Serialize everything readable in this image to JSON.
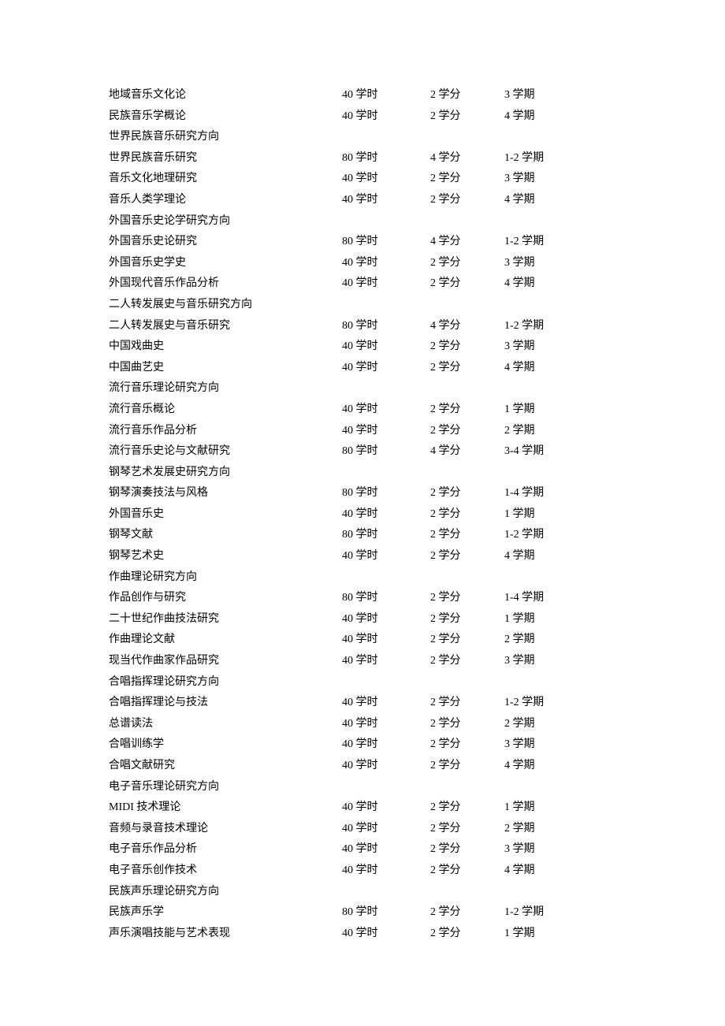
{
  "label_hours_suffix": "学时",
  "label_credit_suffix": "学分",
  "label_term_suffix": "学期",
  "groups": [
    {
      "header": null,
      "rows": [
        {
          "name": "地域音乐文化论",
          "hours": "40",
          "credit": "2",
          "term": "3"
        },
        {
          "name": "民族音乐学概论",
          "hours": "40",
          "credit": "2",
          "term": "4"
        }
      ]
    },
    {
      "header": "世界民族音乐研究方向",
      "rows": [
        {
          "name": "世界民族音乐研究",
          "hours": "80",
          "credit": "4",
          "term": "1-2"
        },
        {
          "name": "音乐文化地理研究",
          "hours": "40",
          "credit": "2",
          "term": "3"
        },
        {
          "name": "音乐人类学理论",
          "hours": "40",
          "credit": "2",
          "term": "4"
        }
      ]
    },
    {
      "header": "外国音乐史论学研究方向",
      "rows": [
        {
          "name": "外国音乐史论研究",
          "hours": "80",
          "credit": "4",
          "term": "1-2"
        },
        {
          "name": "外国音乐史学史",
          "hours": "40",
          "credit": "2",
          "term": "3"
        },
        {
          "name": "外国现代音乐作品分析",
          "hours": "40",
          "credit": "2",
          "term": "4"
        }
      ]
    },
    {
      "header": "二人转发展史与音乐研究方向",
      "rows": [
        {
          "name": "二人转发展史与音乐研究",
          "hours": "80",
          "credit": "4",
          "term": "1-2"
        },
        {
          "name": "中国戏曲史",
          "hours": "40",
          "credit": "2",
          "term": "3"
        },
        {
          "name": "中国曲艺史",
          "hours": "40",
          "credit": "2",
          "term": "4"
        }
      ]
    },
    {
      "header": "流行音乐理论研究方向",
      "rows": [
        {
          "name": "流行音乐概论",
          "hours": "40",
          "credit": "2",
          "term": "1"
        },
        {
          "name": "流行音乐作品分析",
          "hours": "40",
          "credit": "2",
          "term": "2"
        },
        {
          "name": "流行音乐史论与文献研究",
          "hours": "80",
          "credit": "4",
          "term": "3-4"
        }
      ]
    },
    {
      "header": "钢琴艺术发展史研究方向",
      "rows": [
        {
          "name": "钢琴演奏技法与风格",
          "hours": "80",
          "credit": "2",
          "term": "1-4"
        },
        {
          "name": "外国音乐史",
          "hours": "40",
          "credit": "2",
          "term": "1"
        },
        {
          "name": "钢琴文献",
          "hours": "80",
          "credit": "2",
          "term": "1-2"
        },
        {
          "name": "钢琴艺术史",
          "hours": "40",
          "credit": "2",
          "term": "4"
        }
      ]
    },
    {
      "header": "作曲理论研究方向",
      "rows": [
        {
          "name": "作品创作与研究",
          "hours": "80",
          "credit": "2",
          "term": "1-4"
        },
        {
          "name": "二十世纪作曲技法研究",
          "hours": "40",
          "credit": "2",
          "term": "1"
        },
        {
          "name": "作曲理论文献",
          "hours": "40",
          "credit": "2",
          "term": "2"
        },
        {
          "name": "现当代作曲家作品研究",
          "hours": "40",
          "credit": "2",
          "term": "3"
        }
      ]
    },
    {
      "header": "合唱指挥理论研究方向",
      "rows": [
        {
          "name": "合唱指挥理论与技法",
          "hours": "40",
          "credit": "2",
          "term": "1-2"
        },
        {
          "name": "总谱读法",
          "hours": "40",
          "credit": "2",
          "term": "2"
        },
        {
          "name": "合唱训练学",
          "hours": "40",
          "credit": "2",
          "term": "3"
        },
        {
          "name": "合唱文献研究",
          "hours": "40",
          "credit": "2",
          "term": "4"
        }
      ]
    },
    {
      "header": "电子音乐理论研究方向",
      "rows": [
        {
          "name": "MIDI 技术理论",
          "hours": "40",
          "credit": "2",
          "term": "1"
        },
        {
          "name": "音频与录音技术理论",
          "hours": "40",
          "credit": "2",
          "term": "2"
        },
        {
          "name": "电子音乐作品分析",
          "hours": "40",
          "credit": "2",
          "term": "3"
        },
        {
          "name": "电子音乐创作技术",
          "hours": "40",
          "credit": "2",
          "term": "4"
        }
      ]
    },
    {
      "header": "民族声乐理论研究方向",
      "rows": [
        {
          "name": "民族声乐学",
          "hours": "80",
          "credit": "2",
          "term": "1-2"
        },
        {
          "name": "声乐演唱技能与艺术表现",
          "hours": "40",
          "credit": "2",
          "term": "1"
        }
      ]
    }
  ]
}
